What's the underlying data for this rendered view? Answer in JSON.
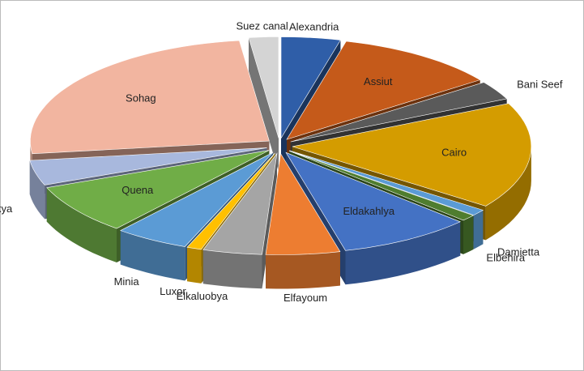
{
  "chart_data": {
    "type": "pie3d",
    "categories": [
      "Alexandria",
      "Assiut",
      "Bani Seef",
      "Cairo",
      "Damietta",
      "Elbehira",
      "Eldakahlya",
      "Elfayoum",
      "Elkaluobya",
      "Luxor",
      "Minia",
      "Quena",
      "Sharkya",
      "Sohag",
      "Suez canal"
    ],
    "values": [
      4,
      11,
      3,
      17,
      1,
      1,
      9,
      5,
      4,
      1,
      5,
      8,
      4,
      25,
      2
    ],
    "colors": [
      "#2f5ea8",
      "#c55a1a",
      "#5a5a5a",
      "#d49c00",
      "#5b9bd5",
      "#4f7d2f",
      "#4472c4",
      "#ed7d31",
      "#a5a5a5",
      "#ffc000",
      "#5b9bd5",
      "#70ad47",
      "#a8b8dd",
      "#f2b5a0",
      "#d4d4d4"
    ]
  }
}
